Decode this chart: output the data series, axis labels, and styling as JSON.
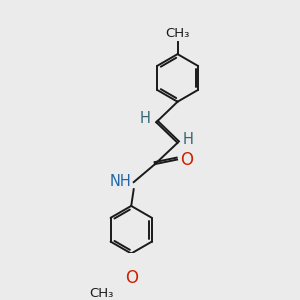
{
  "background_color": "#ebebeb",
  "bond_color": "#1a1a1a",
  "bond_width": 1.4,
  "atom_colors": {
    "N": "#2266aa",
    "O": "#cc2200",
    "H": "#336677",
    "C": "#1a1a1a"
  },
  "font_size_atom": 10.5,
  "figsize": [
    3.0,
    3.0
  ],
  "dpi": 100,
  "xlim": [
    0,
    10
  ],
  "ylim": [
    0,
    10
  ]
}
